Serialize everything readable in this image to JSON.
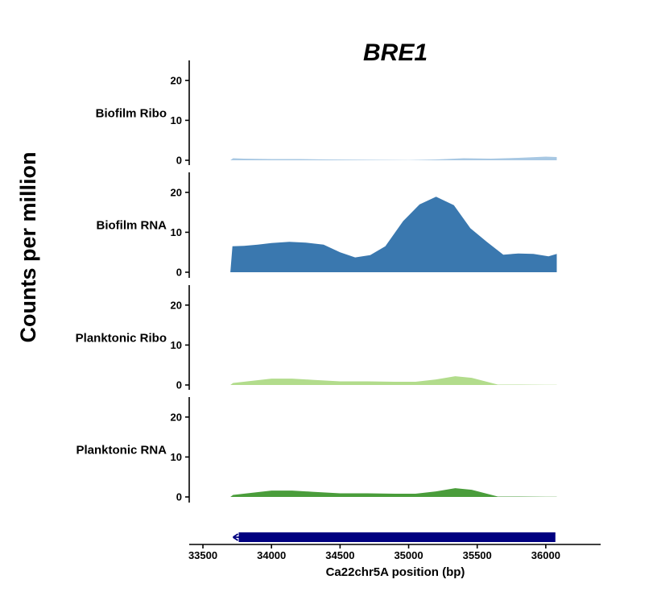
{
  "chart_data": {
    "type": "area",
    "title": "BRE1",
    "ylabel": "Counts per million",
    "xlabel": "Ca22chr5A position (bp)",
    "xlim": [
      33400,
      36400
    ],
    "x_ticks": [
      33500,
      34000,
      34500,
      35000,
      35500,
      36000
    ],
    "x_tick_labels": [
      "33500",
      "34000",
      "34500",
      "35000",
      "35500",
      "36000"
    ],
    "ylim": [
      0,
      25
    ],
    "y_ticks": [
      0,
      10,
      20
    ],
    "y_tick_labels": [
      "0",
      "10",
      "20"
    ],
    "series": [
      {
        "name": "Biofilm Ribo",
        "color": "#a8c8e3",
        "x": [
          33700,
          33720,
          33800,
          34000,
          34200,
          34400,
          34600,
          34800,
          35000,
          35200,
          35400,
          35600,
          35800,
          36000,
          36080
        ],
        "y": [
          0,
          0.5,
          0.4,
          0.3,
          0.3,
          0.2,
          0.15,
          0.1,
          0.05,
          0.2,
          0.5,
          0.4,
          0.6,
          0.9,
          0.8
        ]
      },
      {
        "name": "Biofilm RNA",
        "color": "#3a78af",
        "x": [
          33700,
          33715,
          33800,
          33900,
          34000,
          34130,
          34250,
          34380,
          34500,
          34610,
          34720,
          34830,
          34960,
          35080,
          35200,
          35330,
          35450,
          35570,
          35690,
          35800,
          35910,
          36020,
          36080
        ],
        "y": [
          0,
          6.5,
          6.6,
          6.9,
          7.3,
          7.6,
          7.4,
          6.9,
          5.0,
          3.7,
          4.3,
          6.5,
          12.8,
          17.0,
          18.9,
          16.8,
          11.0,
          7.6,
          4.4,
          4.7,
          4.6,
          4.0,
          4.6
        ]
      },
      {
        "name": "Planktonic Ribo",
        "color": "#b2dc8c",
        "x": [
          33700,
          33720,
          33850,
          34000,
          34150,
          34300,
          34500,
          34700,
          34900,
          35050,
          35200,
          35340,
          35460,
          35650,
          35800,
          36000,
          36080
        ],
        "y": [
          0,
          0.5,
          1.0,
          1.6,
          1.6,
          1.3,
          0.9,
          0.9,
          0.8,
          0.8,
          1.4,
          2.2,
          1.8,
          0.1,
          0.1,
          0.05,
          0.05
        ]
      },
      {
        "name": "Planktonic RNA",
        "color": "#4a9d3b",
        "x": [
          33700,
          33720,
          33850,
          34000,
          34150,
          34300,
          34500,
          34700,
          34900,
          35050,
          35200,
          35340,
          35460,
          35650,
          35800,
          36000,
          36080
        ],
        "y": [
          0,
          0.5,
          1.0,
          1.6,
          1.6,
          1.3,
          0.9,
          0.9,
          0.8,
          0.8,
          1.4,
          2.2,
          1.8,
          0.1,
          0.1,
          0.05,
          0.05
        ]
      }
    ],
    "gene_track": {
      "start": 33720,
      "end": 36070,
      "strand": "-",
      "color": "#000080"
    },
    "grid": false,
    "legend": "none"
  }
}
